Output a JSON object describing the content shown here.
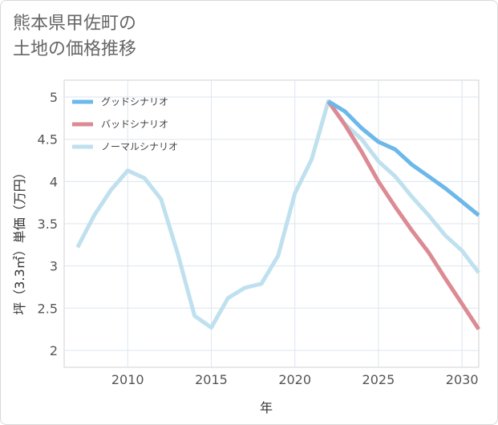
{
  "title": {
    "line1": "熊本県甲佐町の",
    "line2": "土地の価格推移"
  },
  "chart_data": {
    "type": "line",
    "xlabel": "年",
    "ylabel": "坪（3.3㎡）単価（万円）",
    "xlim": [
      2006.2,
      2031
    ],
    "ylim": [
      1.8,
      5.2
    ],
    "xticks": [
      2010,
      2015,
      2020,
      2025,
      2030
    ],
    "yticks": [
      2,
      2.5,
      3,
      3.5,
      4,
      4.5,
      5
    ],
    "ytick_labels": [
      "2",
      "2.5",
      "3",
      "3.5",
      "4",
      "4.5",
      "5"
    ],
    "grid": true,
    "legend_position": "top-left",
    "series": [
      {
        "name": "グッドシナリオ",
        "color": "#6cb8ea",
        "x": [
          2022,
          2023,
          2024,
          2025,
          2026,
          2027,
          2028,
          2029,
          2030,
          2031
        ],
        "y": [
          4.95,
          4.83,
          4.63,
          4.47,
          4.38,
          4.2,
          4.06,
          3.92,
          3.76,
          3.6
        ]
      },
      {
        "name": "バッドシナリオ",
        "color": "#dc8a93",
        "x": [
          2022,
          2023,
          2024,
          2025,
          2026,
          2027,
          2028,
          2029,
          2030,
          2031
        ],
        "y": [
          4.95,
          4.67,
          4.35,
          4.0,
          3.7,
          3.42,
          3.16,
          2.85,
          2.55,
          2.25
        ]
      },
      {
        "name": "ノーマルシナリオ",
        "color": "#bfe0ee",
        "x": [
          2007,
          2008,
          2009,
          2010,
          2011,
          2012,
          2013,
          2014,
          2015,
          2016,
          2017,
          2018,
          2019,
          2020,
          2021,
          2022,
          2023,
          2024,
          2025,
          2026,
          2027,
          2028,
          2029,
          2030,
          2031
        ],
        "y": [
          3.22,
          3.6,
          3.9,
          4.13,
          4.04,
          3.79,
          3.14,
          2.41,
          2.27,
          2.62,
          2.74,
          2.79,
          3.12,
          3.86,
          4.26,
          4.95,
          4.68,
          4.5,
          4.24,
          4.06,
          3.82,
          3.6,
          3.36,
          3.18,
          2.92
        ]
      }
    ]
  }
}
